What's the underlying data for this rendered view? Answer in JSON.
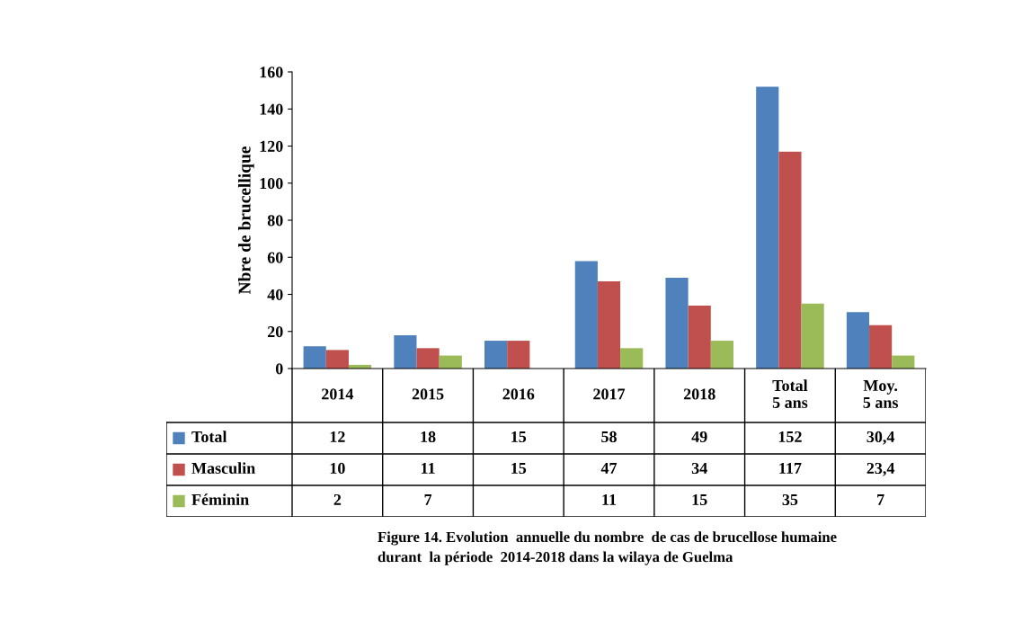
{
  "chart_data": {
    "type": "bar",
    "ylabel": "Nbre de brucellique",
    "categories": [
      "2014",
      "2015",
      "2016",
      "2017",
      "2018",
      "Total\n5 ans",
      "Moy.\n5 ans"
    ],
    "series": [
      {
        "name": "Total",
        "color": "#4f81bd",
        "values": [
          12,
          18,
          15,
          58,
          49,
          152,
          30.4
        ],
        "value_labels": [
          "12",
          "18",
          "15",
          "58",
          "49",
          "152",
          "30,4"
        ]
      },
      {
        "name": "Masculin",
        "color": "#c0504d",
        "values": [
          10,
          11,
          15,
          47,
          34,
          117,
          23.4
        ],
        "value_labels": [
          "10",
          "11",
          "15",
          "47",
          "34",
          "117",
          "23,4"
        ]
      },
      {
        "name": "Féminin",
        "color": "#9bbb59",
        "values": [
          2,
          7,
          null,
          11,
          15,
          35,
          7
        ],
        "value_labels": [
          "2",
          "7",
          null,
          "11",
          "15",
          "35",
          "7"
        ]
      }
    ],
    "ylim": [
      0,
      160
    ],
    "yticks": [
      0,
      20,
      40,
      60,
      80,
      100,
      120,
      140,
      160
    ],
    "grid": false,
    "legend": "bottom",
    "annotations": [
      "Figure 14. Evolution  annuelle du nombre  de cas de brucellose humaine\ndurant  la période  2014-2018 dans la wilaya de Guelma"
    ]
  }
}
